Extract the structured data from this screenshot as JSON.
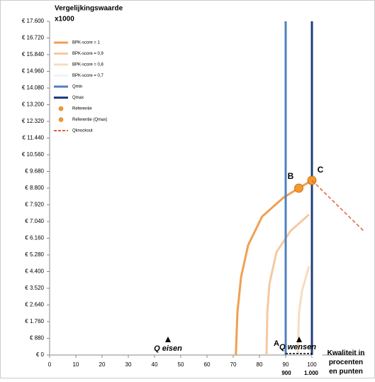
{
  "chart_data": {
    "type": "line",
    "title": "Vergelijkingswaarde",
    "subtitle": "x1000",
    "xlabel": "Kwaliteit in procenten en punten",
    "xlim": [
      0,
      120
    ],
    "ylim": [
      0,
      17600
    ],
    "xticks": [
      0,
      10,
      20,
      30,
      40,
      50,
      60,
      70,
      80,
      90,
      100
    ],
    "yticks": [
      {
        "value": 0,
        "label": "€ 0"
      },
      {
        "value": 880,
        "label": "€ 880"
      },
      {
        "value": 1760,
        "label": "€ 1.760"
      },
      {
        "value": 2640,
        "label": "€ 2.640"
      },
      {
        "value": 3520,
        "label": "€ 3.520"
      },
      {
        "value": 4400,
        "label": "€ 4.400"
      },
      {
        "value": 5280,
        "label": "€ 5.280"
      },
      {
        "value": 6160,
        "label": "€ 6.160"
      },
      {
        "value": 7040,
        "label": "€ 7.040"
      },
      {
        "value": 7920,
        "label": "€ 7.920"
      },
      {
        "value": 8800,
        "label": "€ 8.800"
      },
      {
        "value": 9680,
        "label": "€ 9.680"
      },
      {
        "value": 10560,
        "label": "€ 10.560"
      },
      {
        "value": 11440,
        "label": "€ 11.440"
      },
      {
        "value": 12320,
        "label": "€ 12.320"
      },
      {
        "value": 13200,
        "label": "€ 13.200"
      },
      {
        "value": 14080,
        "label": "€ 14.080"
      },
      {
        "value": 14960,
        "label": "€ 14.960"
      },
      {
        "value": 15840,
        "label": "€ 15.840"
      },
      {
        "value": 16720,
        "label": "€ 16.720"
      },
      {
        "value": 17600,
        "label": "€ 17.600"
      }
    ],
    "series": [
      {
        "name": "BPK-score = 1",
        "color": "#f0a050",
        "width": 3,
        "x": [
          71,
          71.6,
          73,
          75.7,
          81,
          89.2,
          95,
          100
        ],
        "values": [
          0,
          2250,
          4120,
          5800,
          7300,
          8310,
          8800,
          9210
        ]
      },
      {
        "name": "BPK-score = 0,9",
        "color": "#f5c9a0",
        "width": 3,
        "x": [
          82.7,
          83,
          83.8,
          86.5,
          91.9,
          98.9
        ],
        "values": [
          0,
          2250,
          3740,
          5430,
          6550,
          7410
        ]
      },
      {
        "name": "BPK-score = 0,8",
        "color": "#f6dcc4",
        "width": 3,
        "x": [
          94.6,
          95.1,
          96.2,
          98.9
        ],
        "values": [
          0,
          2250,
          3370,
          4680
        ]
      },
      {
        "name": "BPK-score = 0,7",
        "color": "#ffffff",
        "width": 3,
        "x": [
          100,
          104
        ],
        "values": [
          0,
          0
        ]
      },
      {
        "name": "Qmin",
        "color": "#4f81bd",
        "width": 3,
        "x": [
          90,
          90
        ],
        "values": [
          0,
          17600
        ]
      },
      {
        "name": "Qmax",
        "color": "#1f3f7a",
        "width": 3,
        "x": [
          100,
          100
        ],
        "values": [
          0,
          17600
        ]
      },
      {
        "name": "Referentie",
        "color": "#f39a2c",
        "marker": true,
        "x": [
          95
        ],
        "values": [
          8800
        ]
      },
      {
        "name": "Referentie (Qmax)",
        "color": "#f39a2c",
        "marker": true,
        "x": [
          100
        ],
        "values": [
          9210
        ]
      },
      {
        "name": "Qknockout",
        "color": "#e0603a",
        "width": 1.5,
        "dash": true,
        "x": [
          100,
          119.7
        ],
        "values": [
          9210,
          6550
        ]
      }
    ],
    "annotations": [
      "B",
      "C",
      "A",
      "Q eisen",
      "Q wensen",
      "900",
      "1.000"
    ]
  }
}
